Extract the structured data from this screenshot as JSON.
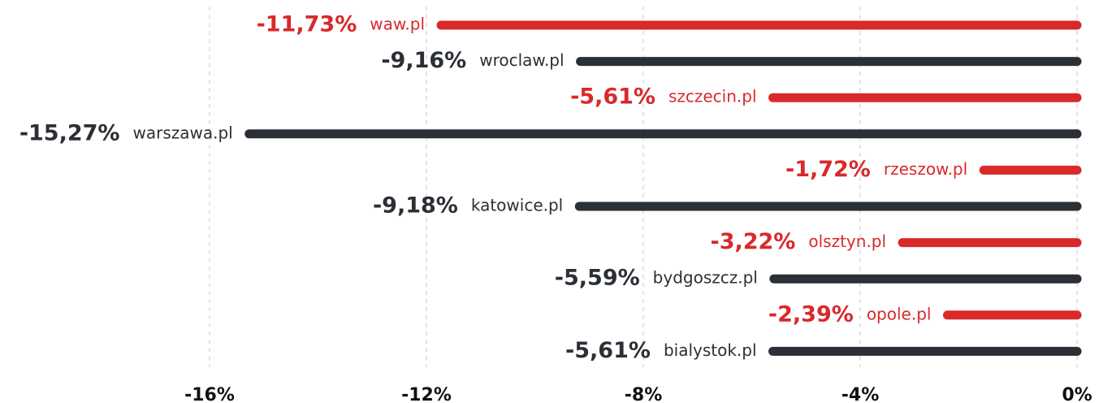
{
  "chart_data": {
    "type": "bar",
    "orientation": "horizontal",
    "categories": [
      "waw.pl",
      "wroclaw.pl",
      "szczecin.pl",
      "warszawa.pl",
      "rzeszow.pl",
      "katowice.pl",
      "olsztyn.pl",
      "bydgoszcz.pl",
      "opole.pl",
      "bialystok.pl"
    ],
    "values": [
      -11.73,
      -9.16,
      -5.61,
      -15.27,
      -1.72,
      -9.18,
      -3.22,
      -5.59,
      -2.39,
      -5.61
    ],
    "value_labels": [
      "-11,73%",
      "-9,16%",
      "-5,61%",
      "-15,27%",
      "-1,72%",
      "-9,18%",
      "-3,22%",
      "-5,59%",
      "-2,39%",
      "-5,61%"
    ],
    "colors": [
      "#d9292b",
      "#2b2f36",
      "#d9292b",
      "#2b2f36",
      "#d9292b",
      "#2b2f36",
      "#d9292b",
      "#2b2f36",
      "#d9292b",
      "#2b2f36"
    ],
    "xlim": [
      -16,
      0
    ],
    "xticks": [
      {
        "value": -16,
        "label": "-16%"
      },
      {
        "value": -12,
        "label": "-12%"
      },
      {
        "value": -8,
        "label": "-8%"
      },
      {
        "value": -4,
        "label": "-4%"
      },
      {
        "value": 0,
        "label": "0%"
      }
    ],
    "grid": true
  }
}
